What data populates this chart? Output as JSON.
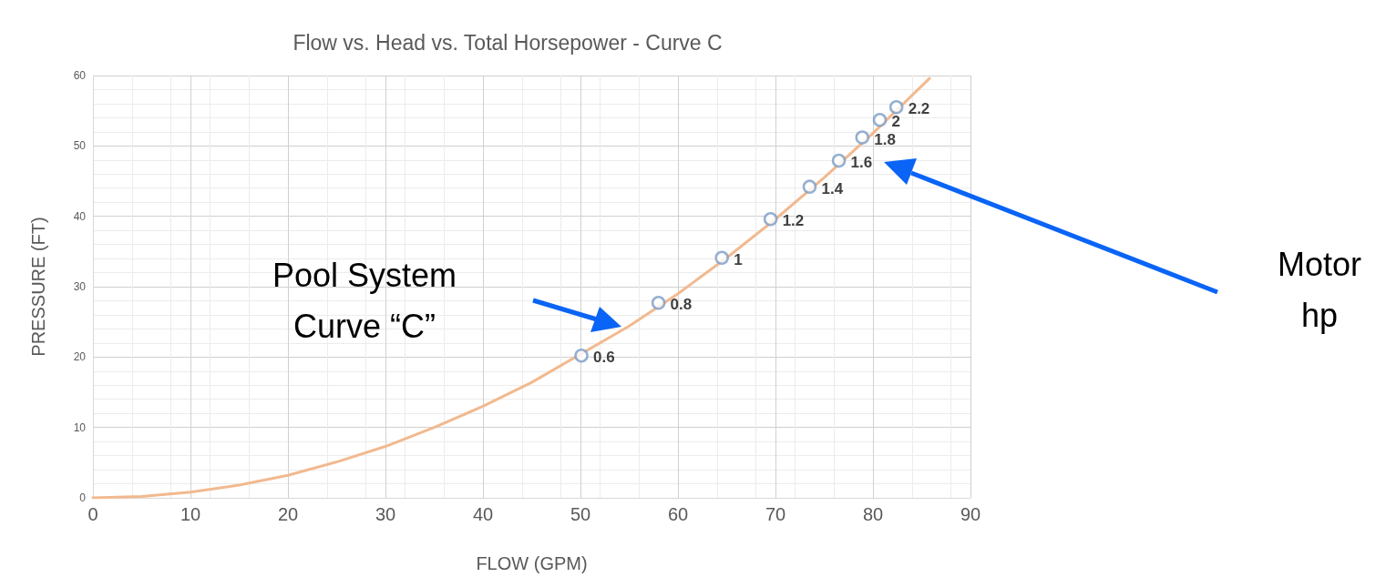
{
  "chart_data": {
    "type": "line",
    "title": "Flow vs. Head vs. Total Horsepower - Curve C",
    "xlabel": "FLOW (GPM)",
    "ylabel": "PRESSURE (FT)",
    "annotations": [
      "Pool System\nCurve “C”",
      "Motor\nhp",
      {
        "text": "0.6",
        "x": 50.1,
        "y": 20.2
      },
      {
        "text": "0.8",
        "x": 58.0,
        "y": 27.7
      },
      {
        "text": "1",
        "x": 64.5,
        "y": 34.1
      },
      {
        "text": "1.2",
        "x": 69.5,
        "y": 39.6
      },
      {
        "text": "1.4",
        "x": 73.5,
        "y": 44.2
      },
      {
        "text": "1.6",
        "x": 76.5,
        "y": 47.9
      },
      {
        "text": "1.8",
        "x": 78.9,
        "y": 51.2
      },
      {
        "text": "2",
        "x": 80.7,
        "y": 53.7
      },
      {
        "text": "2.2",
        "x": 82.4,
        "y": 55.5
      }
    ],
    "series": [
      {
        "type": "line",
        "color": "#f2b98f",
        "marker": "none",
        "x": [
          0,
          5,
          10,
          15,
          20,
          25,
          30,
          35,
          40,
          45,
          55,
          60,
          65,
          70,
          75,
          80,
          85.8
        ],
        "values": [
          0,
          0.2,
          0.8,
          1.8,
          3.2,
          5.1,
          7.3,
          10,
          13,
          16.4,
          24.4,
          29,
          34.1,
          39.6,
          45.5,
          51.8,
          59.6
        ]
      },
      {
        "type": "scatter",
        "color": "#7a9cc6",
        "marker": "circle",
        "x": [
          50.1,
          58.0,
          64.5,
          69.5,
          73.5,
          76.5,
          78.9,
          80.7,
          82.4
        ],
        "values": [
          20.2,
          27.7,
          34.1,
          39.6,
          44.2,
          47.9,
          51.2,
          53.7,
          55.5
        ]
      }
    ],
    "xlim": [
      0,
      90
    ],
    "xticks": [
      0,
      10,
      20,
      30,
      40,
      50,
      60,
      70,
      80,
      90
    ],
    "ylim": [
      0,
      60
    ],
    "yticks": [
      0,
      10,
      20,
      30,
      40,
      50,
      60
    ],
    "grid": true
  }
}
